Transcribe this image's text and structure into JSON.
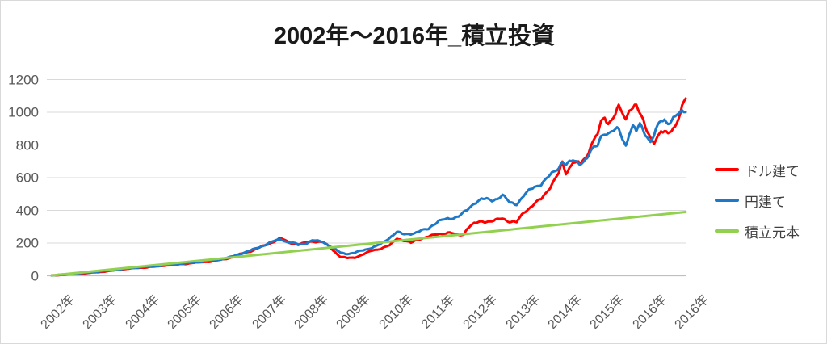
{
  "chart_data": {
    "type": "line",
    "title": "2002年〜2016年_積立投資",
    "x_axis": {
      "tick_labels": [
        "2002年",
        "2003年",
        "2004年",
        "2005年",
        "2006年",
        "2007年",
        "2008年",
        "2009年",
        "2010年",
        "2011年",
        "2012年",
        "2013年",
        "2014年",
        "2015年",
        "2016年",
        "2016年"
      ],
      "label_rotation_deg": -45,
      "unit": "年"
    },
    "y_axis": {
      "ticks": [
        0,
        200,
        400,
        600,
        800,
        1000,
        1200
      ],
      "min": 0,
      "max": 1200
    },
    "x_unit_months": 180,
    "grid": {
      "horizontal": true,
      "vertical": false
    },
    "legend_position": "right",
    "colors": {
      "grid": "#d9d9d9",
      "axis_line": "#bfbfbf",
      "axis_labels": "#595959",
      "title": "#1a1a1a",
      "legend_text": "#3f3f3f"
    },
    "series": [
      {
        "name": "ドル建て",
        "color": "#ff0000",
        "points": [
          [
            0,
            2
          ],
          [
            3,
            6
          ],
          [
            6,
            11
          ],
          [
            9,
            13
          ],
          [
            12,
            21
          ],
          [
            15,
            26
          ],
          [
            18,
            34
          ],
          [
            21,
            42
          ],
          [
            24,
            48
          ],
          [
            27,
            52
          ],
          [
            30,
            58
          ],
          [
            33,
            65
          ],
          [
            36,
            70
          ],
          [
            39,
            76
          ],
          [
            42,
            83
          ],
          [
            45,
            87
          ],
          [
            48,
            97
          ],
          [
            51,
            112
          ],
          [
            54,
            135
          ],
          [
            57,
            155
          ],
          [
            60,
            180
          ],
          [
            62,
            200
          ],
          [
            65,
            228
          ],
          [
            67,
            208
          ],
          [
            70,
            190
          ],
          [
            72,
            200
          ],
          [
            74,
            212
          ],
          [
            77,
            205
          ],
          [
            79,
            175
          ],
          [
            82,
            115
          ],
          [
            84,
            108
          ],
          [
            86,
            112
          ],
          [
            89,
            135
          ],
          [
            91,
            155
          ],
          [
            94,
            170
          ],
          [
            96,
            185
          ],
          [
            98,
            230
          ],
          [
            100,
            215
          ],
          [
            102,
            200
          ],
          [
            104,
            225
          ],
          [
            107,
            238
          ],
          [
            108,
            245
          ],
          [
            110,
            258
          ],
          [
            113,
            262
          ],
          [
            115,
            250
          ],
          [
            117,
            255
          ],
          [
            118,
            290
          ],
          [
            120,
            318
          ],
          [
            122,
            335
          ],
          [
            125,
            330
          ],
          [
            128,
            355
          ],
          [
            130,
            330
          ],
          [
            132,
            325
          ],
          [
            134,
            390
          ],
          [
            137,
            436
          ],
          [
            139,
            470
          ],
          [
            142,
            560
          ],
          [
            144,
            625
          ],
          [
            145,
            690
          ],
          [
            146,
            628
          ],
          [
            148,
            700
          ],
          [
            150,
            680
          ],
          [
            152,
            730
          ],
          [
            153,
            805
          ],
          [
            155,
            870
          ],
          [
            156,
            930
          ],
          [
            157,
            960
          ],
          [
            158,
            930
          ],
          [
            160,
            1000
          ],
          [
            161,
            1035
          ],
          [
            163,
            940
          ],
          [
            164,
            1020
          ],
          [
            166,
            1058
          ],
          [
            167,
            990
          ],
          [
            169,
            880
          ],
          [
            170,
            845
          ],
          [
            171,
            825
          ],
          [
            172,
            855
          ],
          [
            173,
            880
          ],
          [
            175,
            862
          ],
          [
            176,
            895
          ],
          [
            177,
            920
          ],
          [
            178,
            975
          ],
          [
            179,
            1030
          ],
          [
            180,
            1075
          ]
        ]
      },
      {
        "name": "円建て",
        "color": "#1e78c8",
        "points": [
          [
            0,
            2
          ],
          [
            6,
            12
          ],
          [
            12,
            22
          ],
          [
            18,
            35
          ],
          [
            24,
            50
          ],
          [
            30,
            59
          ],
          [
            36,
            72
          ],
          [
            42,
            84
          ],
          [
            48,
            100
          ],
          [
            51,
            115
          ],
          [
            54,
            138
          ],
          [
            57,
            158
          ],
          [
            60,
            185
          ],
          [
            62,
            202
          ],
          [
            65,
            225
          ],
          [
            67,
            205
          ],
          [
            70,
            192
          ],
          [
            72,
            198
          ],
          [
            74,
            215
          ],
          [
            77,
            208
          ],
          [
            79,
            182
          ],
          [
            82,
            140
          ],
          [
            84,
            135
          ],
          [
            86,
            140
          ],
          [
            89,
            160
          ],
          [
            92,
            180
          ],
          [
            94,
            200
          ],
          [
            96,
            235
          ],
          [
            98,
            268
          ],
          [
            100,
            252
          ],
          [
            103,
            262
          ],
          [
            105,
            275
          ],
          [
            107,
            288
          ],
          [
            108,
            310
          ],
          [
            110,
            335
          ],
          [
            112,
            345
          ],
          [
            114,
            355
          ],
          [
            116,
            370
          ],
          [
            118,
            400
          ],
          [
            120,
            447
          ],
          [
            122,
            470
          ],
          [
            125,
            460
          ],
          [
            127,
            480
          ],
          [
            128,
            494
          ],
          [
            130,
            445
          ],
          [
            132,
            440
          ],
          [
            134,
            490
          ],
          [
            137,
            543
          ],
          [
            139,
            565
          ],
          [
            142,
            620
          ],
          [
            144,
            665
          ],
          [
            145,
            705
          ],
          [
            146,
            680
          ],
          [
            148,
            700
          ],
          [
            150,
            690
          ],
          [
            152,
            720
          ],
          [
            153,
            755
          ],
          [
            155,
            800
          ],
          [
            156,
            860
          ],
          [
            157,
            880
          ],
          [
            158,
            865
          ],
          [
            160,
            885
          ],
          [
            161,
            900
          ],
          [
            163,
            800
          ],
          [
            164,
            870
          ],
          [
            165,
            905
          ],
          [
            166,
            880
          ],
          [
            167,
            930
          ],
          [
            169,
            860
          ],
          [
            170,
            815
          ],
          [
            171,
            855
          ],
          [
            172,
            905
          ],
          [
            173,
            950
          ],
          [
            174,
            958
          ],
          [
            175,
            940
          ],
          [
            176,
            952
          ],
          [
            177,
            965
          ],
          [
            178,
            985
          ],
          [
            179,
            1000
          ],
          [
            180,
            1015
          ]
        ]
      },
      {
        "name": "積立元本",
        "color": "#92d050",
        "points": [
          [
            0,
            2
          ],
          [
            180,
            390
          ]
        ]
      }
    ]
  }
}
